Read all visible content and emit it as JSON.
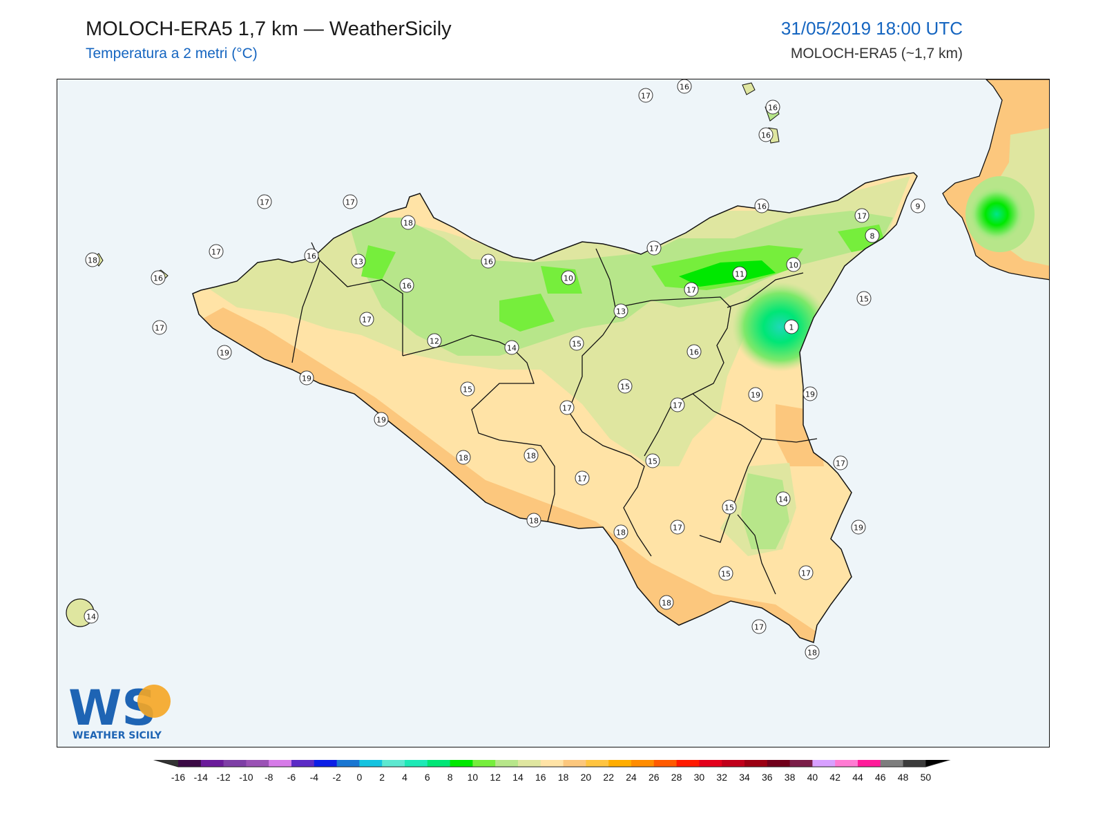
{
  "header": {
    "title": "MOLOCH-ERA5 1,7 km — WeatherSicily",
    "subtitle": "Temperatura a 2 metri (°C)",
    "datetime": "31/05/2019 18:00 UTC",
    "model": "MOLOCH-ERA5 (~1,7 km)"
  },
  "logo": {
    "letters": "WS",
    "name": "WEATHER SICILY"
  },
  "map": {
    "region": "Sicily",
    "sea_color": "#eef5f9",
    "station_values": [
      17,
      16,
      16,
      16,
      17,
      17,
      17,
      18,
      18,
      16,
      16,
      13,
      16,
      17,
      17,
      16,
      19,
      19,
      12,
      17,
      16,
      10,
      13,
      17,
      9,
      8,
      10,
      11,
      17,
      1,
      15,
      14,
      16,
      15,
      15,
      19,
      19,
      19,
      17,
      15,
      17,
      18,
      17,
      17,
      15,
      18,
      18,
      18,
      14,
      15,
      17,
      19,
      15,
      17,
      18,
      17,
      18,
      14
    ]
  },
  "colorbar": {
    "ticks": [
      "-16",
      "-14",
      "-12",
      "-10",
      "-8",
      "-6",
      "-4",
      "-2",
      "0",
      "2",
      "4",
      "6",
      "8",
      "10",
      "12",
      "14",
      "16",
      "18",
      "20",
      "22",
      "24",
      "26",
      "28",
      "30",
      "32",
      "34",
      "36",
      "38",
      "40",
      "42",
      "44",
      "46",
      "48",
      "50"
    ],
    "colors": [
      "#3b0a45",
      "#6a1b9a",
      "#7e3fa6",
      "#9a52b5",
      "#d67be8",
      "#5b2bc5",
      "#0b1ee6",
      "#1976d2",
      "#14c3e0",
      "#5de8d0",
      "#1de9b6",
      "#00e676",
      "#00e800",
      "#76ee3c",
      "#b7e68a",
      "#dfe6a0",
      "#ffe3a6",
      "#fcc77d",
      "#ffc440",
      "#ffad00",
      "#ff8c00",
      "#ff5a00",
      "#ff1a00",
      "#e3001b",
      "#c0001a",
      "#9b0012",
      "#70001a",
      "#7a1e48",
      "#d8a0ff",
      "#ff7bd3",
      "#ff1a9a",
      "#7d7d7d",
      "#3a3a3a"
    ]
  }
}
